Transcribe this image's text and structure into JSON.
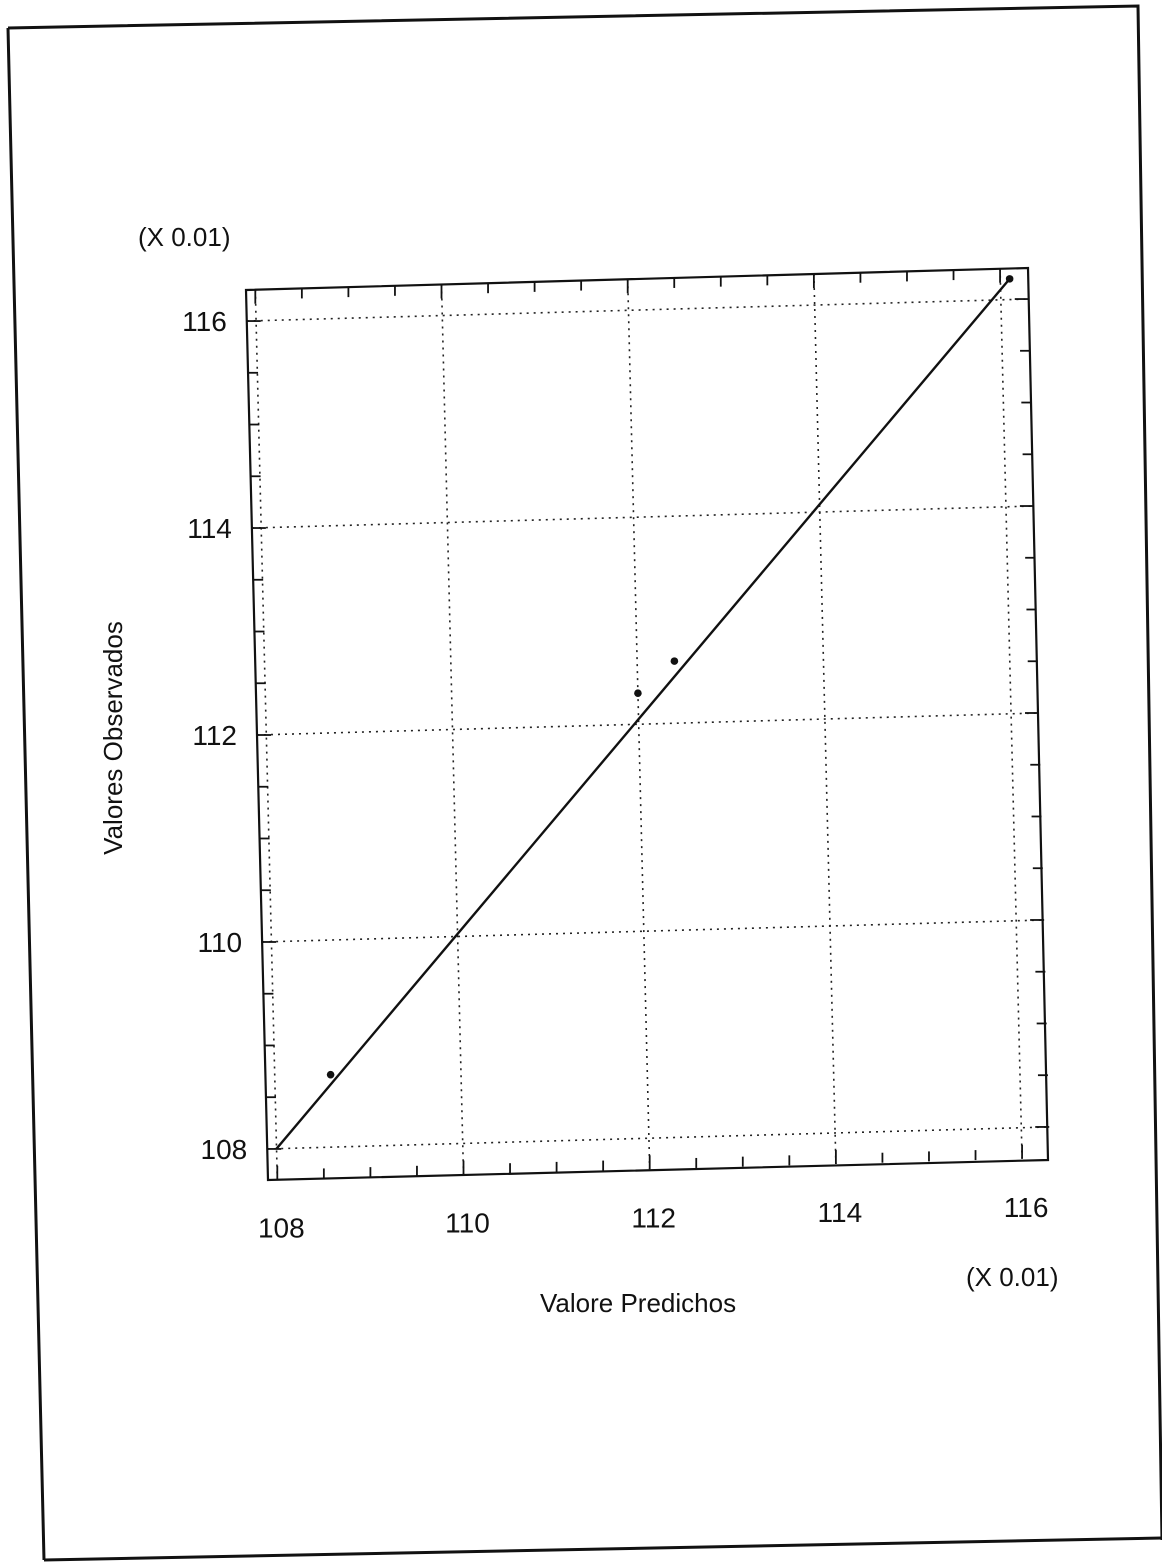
{
  "chart_data": {
    "type": "scatter",
    "xlabel": "Valore Predichos",
    "ylabel": "Valores Observados",
    "x_multiplier": "(X 0.01)",
    "y_multiplier": "(X 0.01)",
    "xlim": [
      107.9,
      116.3
    ],
    "ylim": [
      107.7,
      116.3
    ],
    "x_ticks": [
      108,
      110,
      112,
      114,
      116
    ],
    "y_ticks": [
      108,
      110,
      112,
      114,
      116
    ],
    "grid": true,
    "points": [
      {
        "x": 108.6,
        "y": 108.7
      },
      {
        "x": 112.0,
        "y": 112.3
      },
      {
        "x": 112.4,
        "y": 112.6
      },
      {
        "x": 116.1,
        "y": 116.2
      }
    ],
    "fit_line": {
      "x": [
        108.0,
        116.1
      ],
      "y": [
        108.0,
        116.2
      ]
    }
  }
}
